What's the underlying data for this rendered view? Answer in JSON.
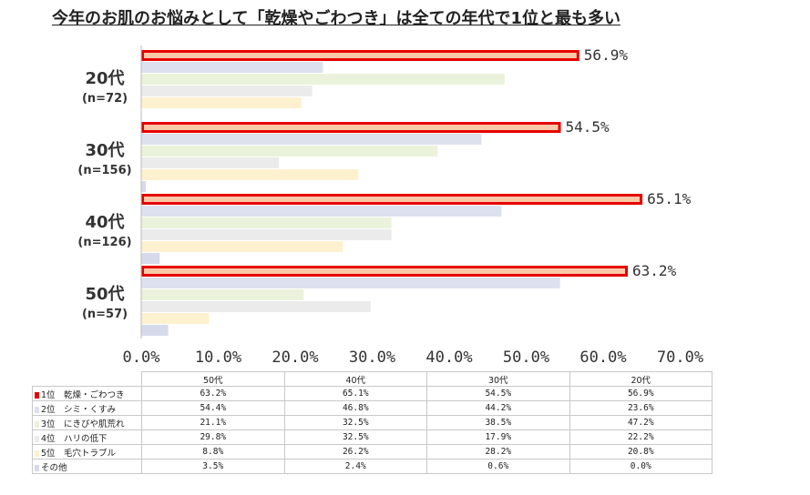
{
  "title": "今年のお肌のお悩みとして「乾燥やごわつき」は全ての年代で1位と最も多い",
  "chart_data": {
    "type": "bar",
    "orientation": "horizontal",
    "categories": [
      "20代",
      "30代",
      "40代",
      "50代"
    ],
    "category_n": [
      "(n=72)",
      "(n=156)",
      "(n=126)",
      "(n=57)"
    ],
    "xlim": [
      0,
      70
    ],
    "x_ticks": [
      "0.0%",
      "10.0%",
      "20.0%",
      "30.0%",
      "40.0%",
      "50.0%",
      "60.0%",
      "70.0%"
    ],
    "highlight_labels": [
      "56.9%",
      "54.5%",
      "65.1%",
      "63.2%"
    ],
    "series": [
      {
        "name": "1位　乾燥・ごわつき",
        "color": "#f8c9a8",
        "stroke": "#e60000",
        "values": [
          56.9,
          54.5,
          65.1,
          63.2
        ]
      },
      {
        "name": "2位　シミ・くすみ",
        "color": "#dde1ee",
        "values": [
          23.6,
          44.2,
          46.8,
          54.4
        ]
      },
      {
        "name": "3位　にきびや肌荒れ",
        "color": "#eaf2dc",
        "values": [
          47.2,
          38.5,
          32.5,
          21.1
        ]
      },
      {
        "name": "4位　ハリの低下",
        "color": "#ebebeb",
        "values": [
          22.2,
          17.9,
          32.5,
          29.8
        ]
      },
      {
        "name": "5位　毛穴トラブル",
        "color": "#fdf1cf",
        "values": [
          20.8,
          28.2,
          26.2,
          8.8
        ]
      },
      {
        "name": "その他",
        "color": "#d6daea",
        "values": [
          0.0,
          0.6,
          2.4,
          3.5
        ]
      }
    ],
    "legend": "data table below chart",
    "grid": false
  },
  "table": {
    "columns": [
      "50代",
      "40代",
      "30代",
      "20代"
    ],
    "rows": [
      {
        "label": "1位　乾燥・ごわつき",
        "values": [
          "63.2%",
          "65.1%",
          "54.5%",
          "56.9%"
        ]
      },
      {
        "label": "2位　シミ・くすみ",
        "values": [
          "54.4%",
          "46.8%",
          "44.2%",
          "23.6%"
        ]
      },
      {
        "label": "3位　にきびや肌荒れ",
        "values": [
          "21.1%",
          "32.5%",
          "38.5%",
          "47.2%"
        ]
      },
      {
        "label": "4位　ハリの低下",
        "values": [
          "29.8%",
          "32.5%",
          "17.9%",
          "22.2%"
        ]
      },
      {
        "label": "5位　毛穴トラブル",
        "values": [
          "8.8%",
          "26.2%",
          "28.2%",
          "20.8%"
        ]
      },
      {
        "label": "その他",
        "values": [
          "3.5%",
          "2.4%",
          "0.6%",
          "0.0%"
        ]
      }
    ]
  }
}
